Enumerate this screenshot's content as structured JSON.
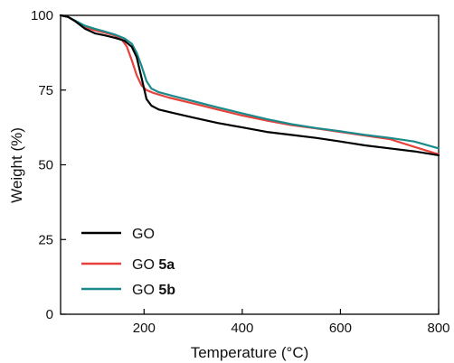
{
  "chart_data": {
    "type": "line",
    "xlabel": "Temperature (°C)",
    "ylabel": "Weight (%)",
    "xlim": [
      30,
      800
    ],
    "ylim": [
      0,
      100
    ],
    "xticks": [
      200,
      400,
      600,
      800
    ],
    "yticks": [
      0,
      25,
      50,
      75,
      100
    ],
    "grid": false,
    "legend_position": "bottom-left",
    "series": [
      {
        "name": "GO",
        "name_prefix": "GO",
        "name_suffix": "",
        "color": "#000000",
        "x": [
          30,
          45,
          60,
          80,
          100,
          120,
          140,
          160,
          175,
          185,
          195,
          205,
          215,
          230,
          260,
          300,
          350,
          400,
          450,
          500,
          550,
          600,
          650,
          700,
          750,
          800
        ],
        "y": [
          100,
          99.5,
          98,
          95.5,
          94,
          93.3,
          92.5,
          91.5,
          89.5,
          86,
          79,
          72,
          69.8,
          68.5,
          67.3,
          65.8,
          64,
          62.5,
          61,
          60,
          59,
          57.8,
          56.5,
          55.5,
          54.5,
          53.2
        ]
      },
      {
        "name": "GO 5a",
        "name_prefix": "GO ",
        "name_suffix": "5a",
        "color": "#e8413c",
        "x": [
          30,
          45,
          60,
          80,
          100,
          120,
          140,
          155,
          165,
          175,
          185,
          195,
          205,
          220,
          250,
          300,
          350,
          400,
          450,
          500,
          550,
          600,
          650,
          700,
          750,
          800
        ],
        "y": [
          100,
          99.5,
          98,
          96,
          95,
          94.2,
          93.3,
          91.8,
          89.5,
          85,
          80,
          76.5,
          75,
          74,
          72.5,
          70.5,
          68.5,
          66.5,
          64.8,
          63.3,
          62.2,
          61,
          59.8,
          58.6,
          56,
          53.5
        ]
      },
      {
        "name": "GO 5b",
        "name_prefix": "GO ",
        "name_suffix": "5b",
        "color": "#1a8a8a",
        "x": [
          30,
          45,
          60,
          80,
          100,
          120,
          140,
          160,
          175,
          185,
          195,
          205,
          215,
          230,
          260,
          300,
          350,
          400,
          450,
          500,
          550,
          600,
          650,
          700,
          750,
          800
        ],
        "y": [
          100,
          99.5,
          98.2,
          96.5,
          95.5,
          94.6,
          93.6,
          92.3,
          90.5,
          87.5,
          83,
          78,
          75.5,
          74.3,
          73,
          71.3,
          69.2,
          67.2,
          65.3,
          63.6,
          62.3,
          61.2,
          60,
          59,
          57.8,
          55.5
        ]
      }
    ]
  }
}
